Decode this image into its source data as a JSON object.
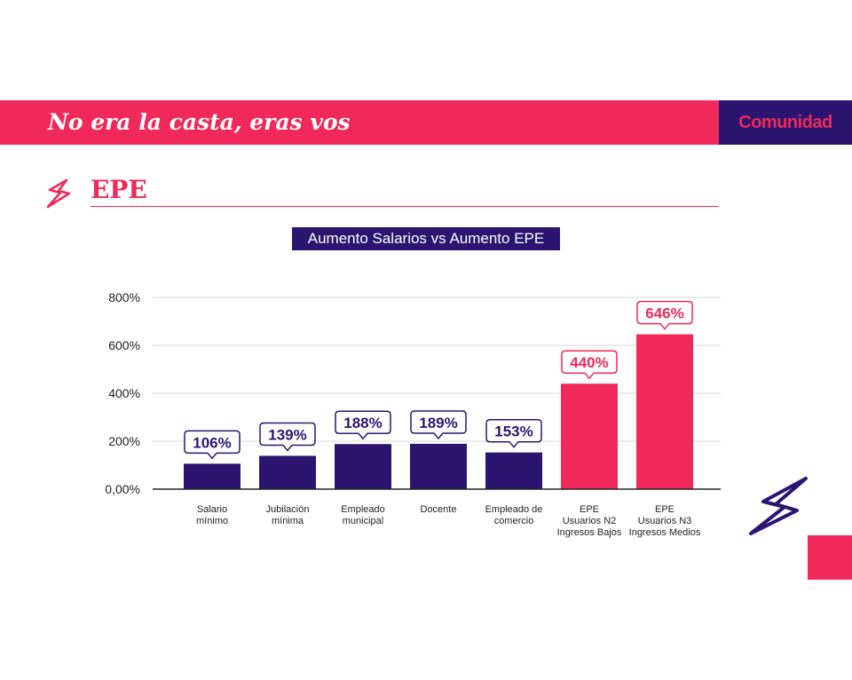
{
  "header": {
    "title": "No era la casta, eras vos",
    "brand": "Comunidad"
  },
  "section": {
    "title": "EPE",
    "icon": "lightning-bolt-icon"
  },
  "colors": {
    "accent": "#f0295a",
    "primary": "#2b1570",
    "grid": "#d9d9d9"
  },
  "chart_data": {
    "type": "bar",
    "title": "Aumento Salarios vs Aumento EPE",
    "categories": [
      [
        "Salario",
        "mínimo"
      ],
      [
        "Jubilación",
        "mínima"
      ],
      [
        "Empleado",
        "municipal"
      ],
      [
        "Docente"
      ],
      [
        "Empleado de",
        "comercio"
      ],
      [
        "EPE",
        "Usuarios N2",
        "Ingresos Bajos"
      ],
      [
        "EPE",
        "Usuarios N3",
        "Ingresos Medios"
      ]
    ],
    "values": [
      106,
      139,
      188,
      189,
      153,
      440,
      646
    ],
    "data_labels": [
      "106%",
      "139%",
      "188%",
      "189%",
      "153%",
      "440%",
      "646%"
    ],
    "bar_colors": [
      "#2b1570",
      "#2b1570",
      "#2b1570",
      "#2b1570",
      "#2b1570",
      "#f0295a",
      "#f0295a"
    ],
    "ylim": [
      0,
      800
    ],
    "yticks": [
      0,
      200,
      400,
      600,
      800
    ],
    "ytick_labels": [
      "0,00%",
      "200%",
      "400%",
      "600%",
      "800%"
    ],
    "grid": true,
    "legend": "none",
    "xlabel": "",
    "ylabel": ""
  }
}
